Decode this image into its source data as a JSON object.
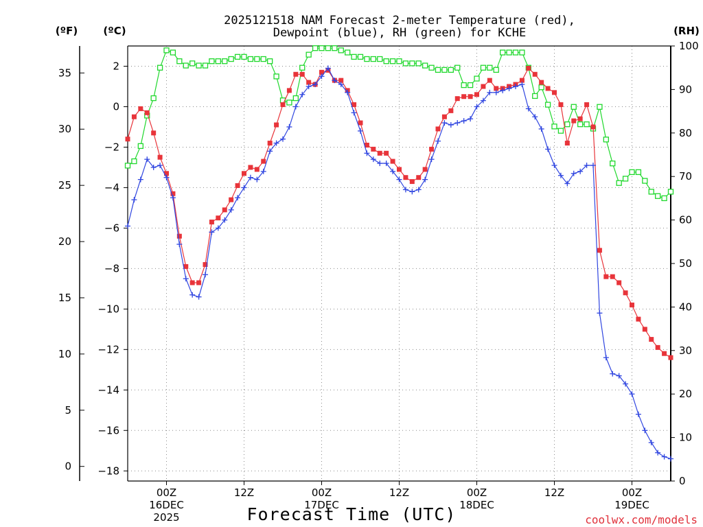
{
  "chart_data": {
    "type": "line",
    "title_line1": "2025121518 NAM Forecast 2-meter Temperature (red),",
    "title_line2": "Dewpoint (blue), RH (green) for KCHE",
    "units": {
      "fahrenheit": "(ºF)",
      "celsius": "(ºC)",
      "rh": "(RH)"
    },
    "xlabel": "Forecast Time (UTC)",
    "credit": "coolwx.com/models",
    "colors": {
      "temperature": "#e8343a",
      "dewpoint": "#2f45e0",
      "rh": "#1fd82c",
      "credit": "#e0303a",
      "axis": "#000000",
      "grid": "#888888"
    },
    "forecast_hours": [
      0,
      54
    ],
    "hour_step": 0.5,
    "celsius_axis": {
      "range": [
        -18.5,
        3.0
      ],
      "ticks": [
        2,
        0,
        -2,
        -4,
        -6,
        -8,
        -10,
        -12,
        -14,
        -16,
        -18
      ],
      "tick_labels": [
        "2",
        "0",
        "−2",
        "−4",
        "−6",
        "−8",
        "−10",
        "−12",
        "−14",
        "−16",
        "−18"
      ]
    },
    "fahrenheit_axis": {
      "ticks": [
        35,
        30,
        25,
        20,
        15,
        10,
        5,
        0
      ],
      "tick_labels": [
        "35",
        "30",
        "25",
        "20",
        "15",
        "10",
        "5",
        "0"
      ]
    },
    "rh_axis": {
      "range": [
        0,
        100
      ],
      "ticks": [
        100,
        90,
        80,
        70,
        60,
        50,
        40,
        30,
        20,
        10,
        0
      ],
      "tick_labels": [
        "100",
        "90",
        "80",
        "70",
        "60",
        "50",
        "40",
        "30",
        "20",
        "10",
        "0"
      ]
    },
    "x_ticks": [
      {
        "hour": 6,
        "line1": "00Z",
        "line2": "16DEC",
        "line3": "2025"
      },
      {
        "hour": 18,
        "line1": "12Z",
        "line2": "",
        "line3": ""
      },
      {
        "hour": 30,
        "line1": "00Z",
        "line2": "17DEC",
        "line3": ""
      },
      {
        "hour": 42,
        "line1": "12Z",
        "line2": "",
        "line3": ""
      },
      {
        "hour": 54,
        "line1": "00Z",
        "line2": "18DEC",
        "line3": ""
      },
      {
        "hour": 66,
        "line1": "12Z",
        "line2": "",
        "line3": ""
      },
      {
        "hour": 78,
        "line1": "00Z",
        "line2": "19DEC",
        "line3": ""
      }
    ],
    "series": [
      {
        "name": "Temperature",
        "unit": "C",
        "values": [
          [
            0.0,
            -1.6
          ],
          [
            1.0,
            -0.5
          ],
          [
            2.0,
            -0.1
          ],
          [
            3.0,
            -0.3
          ],
          [
            4.0,
            -1.3
          ],
          [
            5.0,
            -2.5
          ],
          [
            6.0,
            -3.3
          ],
          [
            7.0,
            -4.3
          ],
          [
            8.0,
            -6.4
          ],
          [
            9.0,
            -7.9
          ],
          [
            10.0,
            -8.7
          ],
          [
            11.0,
            -8.7
          ],
          [
            12.0,
            -7.8
          ],
          [
            13.0,
            -5.7
          ],
          [
            14.0,
            -5.5
          ],
          [
            15.0,
            -5.1
          ],
          [
            16.0,
            -4.6
          ],
          [
            17.0,
            -3.9
          ],
          [
            18.0,
            -3.3
          ],
          [
            19.0,
            -3.0
          ],
          [
            20.0,
            -3.1
          ],
          [
            21.0,
            -2.7
          ],
          [
            22.0,
            -1.8
          ],
          [
            23.0,
            -0.9
          ],
          [
            24.0,
            0.1
          ],
          [
            25.0,
            0.8
          ],
          [
            26.0,
            1.6
          ],
          [
            27.0,
            1.6
          ],
          [
            28.0,
            1.2
          ],
          [
            29.0,
            1.1
          ],
          [
            30.0,
            1.7
          ],
          [
            31.0,
            1.8
          ],
          [
            32.0,
            1.3
          ],
          [
            33.0,
            1.3
          ],
          [
            34.0,
            0.8
          ],
          [
            35.0,
            0.1
          ],
          [
            36.0,
            -0.8
          ],
          [
            37.0,
            -1.9
          ],
          [
            38.0,
            -2.1
          ],
          [
            39.0,
            -2.3
          ],
          [
            40.0,
            -2.3
          ],
          [
            41.0,
            -2.7
          ],
          [
            42.0,
            -3.1
          ],
          [
            43.0,
            -3.5
          ],
          [
            44.0,
            -3.7
          ],
          [
            45.0,
            -3.5
          ],
          [
            46.0,
            -3.1
          ],
          [
            47.0,
            -2.1
          ],
          [
            48.0,
            -1.1
          ],
          [
            49.0,
            -0.5
          ],
          [
            50.0,
            -0.2
          ],
          [
            51.0,
            0.4
          ],
          [
            52.0,
            0.5
          ],
          [
            53.0,
            0.5
          ],
          [
            54.0,
            0.6
          ],
          [
            55.0,
            1.0
          ],
          [
            56.0,
            1.3
          ],
          [
            57.0,
            0.9
          ],
          [
            58.0,
            0.9
          ],
          [
            59.0,
            1.0
          ],
          [
            60.0,
            1.1
          ],
          [
            61.0,
            1.3
          ],
          [
            62.0,
            1.9
          ],
          [
            63.0,
            1.6
          ],
          [
            64.0,
            1.2
          ],
          [
            65.0,
            0.9
          ],
          [
            66.0,
            0.7
          ],
          [
            67.0,
            0.1
          ],
          [
            68.0,
            -1.8
          ],
          [
            69.0,
            -0.7
          ],
          [
            70.0,
            -0.6
          ],
          [
            71.0,
            0.1
          ],
          [
            72.0,
            -1.0
          ],
          [
            73.0,
            -7.1
          ],
          [
            74.0,
            -8.4
          ],
          [
            75.0,
            -8.4
          ],
          [
            76.0,
            -8.7
          ],
          [
            77.0,
            -9.2
          ],
          [
            78.0,
            -9.8
          ],
          [
            79.0,
            -10.5
          ],
          [
            80.0,
            -11.0
          ],
          [
            81.0,
            -11.5
          ],
          [
            82.0,
            -11.9
          ],
          [
            83.0,
            -12.2
          ],
          [
            84.0,
            -12.4
          ]
        ]
      },
      {
        "name": "Dewpoint",
        "unit": "C",
        "values": [
          [
            0.0,
            -5.9
          ],
          [
            1.0,
            -4.6
          ],
          [
            2.0,
            -3.6
          ],
          [
            3.0,
            -2.6
          ],
          [
            4.0,
            -3.0
          ],
          [
            5.0,
            -2.9
          ],
          [
            6.0,
            -3.5
          ],
          [
            7.0,
            -4.5
          ],
          [
            8.0,
            -6.8
          ],
          [
            9.0,
            -8.5
          ],
          [
            10.0,
            -9.3
          ],
          [
            11.0,
            -9.4
          ],
          [
            12.0,
            -8.3
          ],
          [
            13.0,
            -6.2
          ],
          [
            14.0,
            -6.0
          ],
          [
            15.0,
            -5.6
          ],
          [
            16.0,
            -5.1
          ],
          [
            17.0,
            -4.5
          ],
          [
            18.0,
            -4.0
          ],
          [
            19.0,
            -3.5
          ],
          [
            20.0,
            -3.6
          ],
          [
            21.0,
            -3.2
          ],
          [
            22.0,
            -2.2
          ],
          [
            23.0,
            -1.8
          ],
          [
            24.0,
            -1.6
          ],
          [
            25.0,
            -1.0
          ],
          [
            26.0,
            0.0
          ],
          [
            27.0,
            0.6
          ],
          [
            28.0,
            1.0
          ],
          [
            29.0,
            1.1
          ],
          [
            30.0,
            1.5
          ],
          [
            31.0,
            1.9
          ],
          [
            32.0,
            1.3
          ],
          [
            33.0,
            1.1
          ],
          [
            34.0,
            0.7
          ],
          [
            35.0,
            -0.3
          ],
          [
            36.0,
            -1.2
          ],
          [
            37.0,
            -2.3
          ],
          [
            38.0,
            -2.6
          ],
          [
            39.0,
            -2.8
          ],
          [
            40.0,
            -2.8
          ],
          [
            41.0,
            -3.2
          ],
          [
            42.0,
            -3.6
          ],
          [
            43.0,
            -4.1
          ],
          [
            44.0,
            -4.2
          ],
          [
            45.0,
            -4.1
          ],
          [
            46.0,
            -3.6
          ],
          [
            47.0,
            -2.6
          ],
          [
            48.0,
            -1.7
          ],
          [
            49.0,
            -0.8
          ],
          [
            50.0,
            -0.9
          ],
          [
            51.0,
            -0.8
          ],
          [
            52.0,
            -0.7
          ],
          [
            53.0,
            -0.6
          ],
          [
            54.0,
            0.0
          ],
          [
            55.0,
            0.3
          ],
          [
            56.0,
            0.7
          ],
          [
            57.0,
            0.7
          ],
          [
            58.0,
            0.8
          ],
          [
            59.0,
            0.9
          ],
          [
            60.0,
            1.0
          ],
          [
            61.0,
            1.1
          ],
          [
            62.0,
            -0.1
          ],
          [
            63.0,
            -0.5
          ],
          [
            64.0,
            -1.1
          ],
          [
            65.0,
            -2.1
          ],
          [
            66.0,
            -2.9
          ],
          [
            67.0,
            -3.4
          ],
          [
            68.0,
            -3.8
          ],
          [
            69.0,
            -3.3
          ],
          [
            70.0,
            -3.2
          ],
          [
            71.0,
            -2.9
          ],
          [
            72.0,
            -2.9
          ],
          [
            73.0,
            -10.2
          ],
          [
            74.0,
            -12.4
          ],
          [
            75.0,
            -13.2
          ],
          [
            76.0,
            -13.3
          ],
          [
            77.0,
            -13.7
          ],
          [
            78.0,
            -14.2
          ],
          [
            79.0,
            -15.2
          ],
          [
            80.0,
            -16.0
          ],
          [
            81.0,
            -16.6
          ],
          [
            82.0,
            -17.1
          ],
          [
            83.0,
            -17.3
          ],
          [
            84.0,
            -17.4
          ]
        ]
      },
      {
        "name": "RH",
        "unit": "%",
        "values": [
          [
            0.0,
            72.5
          ],
          [
            1.0,
            73.5
          ],
          [
            2.0,
            77
          ],
          [
            3.0,
            84
          ],
          [
            4.0,
            88
          ],
          [
            5.0,
            95
          ],
          [
            6.0,
            99
          ],
          [
            7.0,
            98.5
          ],
          [
            8.0,
            96.5
          ],
          [
            9.0,
            95.5
          ],
          [
            10.0,
            96
          ],
          [
            11.0,
            95.5
          ],
          [
            12.0,
            95.5
          ],
          [
            13.0,
            96.5
          ],
          [
            14.0,
            96.5
          ],
          [
            15.0,
            96.5
          ],
          [
            16.0,
            97
          ],
          [
            17.0,
            97.5
          ],
          [
            18.0,
            97.5
          ],
          [
            19.0,
            97
          ],
          [
            20.0,
            97
          ],
          [
            21.0,
            97
          ],
          [
            22.0,
            96.5
          ],
          [
            23.0,
            93
          ],
          [
            24.0,
            87.5
          ],
          [
            25.0,
            87
          ],
          [
            26.0,
            88
          ],
          [
            27.0,
            95
          ],
          [
            28.0,
            98
          ],
          [
            29.0,
            99.5
          ],
          [
            30.0,
            99.5
          ],
          [
            31.0,
            99.5
          ],
          [
            32.0,
            99.5
          ],
          [
            33.0,
            99
          ],
          [
            34.0,
            98.5
          ],
          [
            35.0,
            97.5
          ],
          [
            36.0,
            97.5
          ],
          [
            37.0,
            97
          ],
          [
            38.0,
            97
          ],
          [
            39.0,
            97
          ],
          [
            40.0,
            96.5
          ],
          [
            41.0,
            96.5
          ],
          [
            42.0,
            96.5
          ],
          [
            43.0,
            96
          ],
          [
            44.0,
            96
          ],
          [
            45.0,
            96
          ],
          [
            46.0,
            95.5
          ],
          [
            47.0,
            95
          ],
          [
            48.0,
            94.5
          ],
          [
            49.0,
            94.5
          ],
          [
            50.0,
            94.5
          ],
          [
            51.0,
            95
          ],
          [
            52.0,
            91
          ],
          [
            53.0,
            91
          ],
          [
            54.0,
            92.5
          ],
          [
            55.0,
            95
          ],
          [
            56.0,
            95
          ],
          [
            57.0,
            94.5
          ],
          [
            58.0,
            98.5
          ],
          [
            59.0,
            98.5
          ],
          [
            60.0,
            98.5
          ],
          [
            61.0,
            98.5
          ],
          [
            62.0,
            95
          ],
          [
            63.0,
            88.5
          ],
          [
            64.0,
            90.5
          ],
          [
            65.0,
            86.5
          ],
          [
            66.0,
            81.5
          ],
          [
            67.0,
            80.5
          ],
          [
            68.0,
            82
          ],
          [
            69.0,
            86
          ],
          [
            70.0,
            82
          ],
          [
            71.0,
            82
          ],
          [
            72.0,
            81
          ],
          [
            73.0,
            86
          ],
          [
            74.0,
            78.5
          ],
          [
            75.0,
            73
          ],
          [
            76.0,
            68.5
          ],
          [
            77.0,
            69.5
          ],
          [
            78.0,
            71
          ],
          [
            79.0,
            71
          ],
          [
            80.0,
            69
          ],
          [
            81.0,
            66.5
          ],
          [
            82.0,
            65.5
          ],
          [
            83.0,
            65
          ],
          [
            84.0,
            66.5
          ]
        ]
      }
    ]
  }
}
